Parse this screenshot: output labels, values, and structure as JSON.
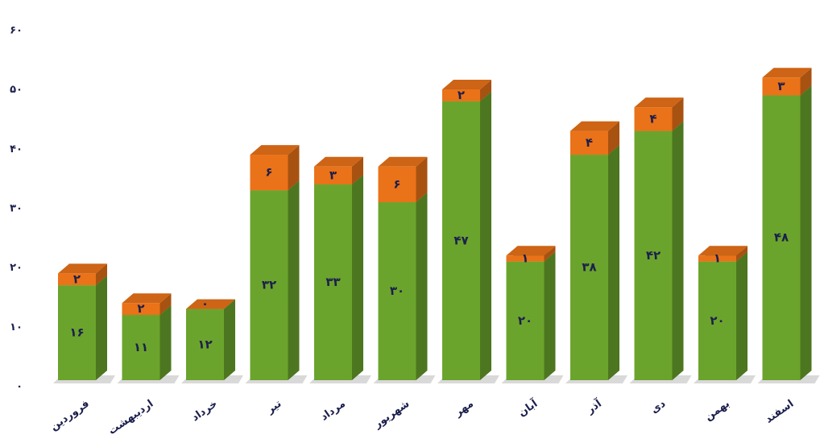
{
  "chart_data": {
    "type": "bar",
    "categories": [
      "فروردین",
      "اردیبهشت",
      "خرداد",
      "تیر",
      "مرداد",
      "شهریور",
      "مهر",
      "آبان",
      "آذر",
      "دی",
      "بهمن",
      "اسفند"
    ],
    "series": [
      {
        "color": "#6ba42c",
        "values": [
          16,
          11,
          12,
          32,
          33,
          30,
          47,
          20,
          38,
          42,
          20,
          48
        ],
        "value_labels": [
          "۱۶",
          "۱۱",
          "۱۲",
          "۳۲",
          "۳۳",
          "۳۰",
          "۴۷",
          "۲۰",
          "۳۸",
          "۴۲",
          "۲۰",
          "۴۸"
        ]
      },
      {
        "color": "#ea7218",
        "values": [
          2,
          2,
          0,
          6,
          3,
          6,
          2,
          1,
          4,
          4,
          1,
          3
        ],
        "value_labels": [
          "۲",
          "۲",
          "۰",
          "۶",
          "۳",
          "۶",
          "۲",
          "۱",
          "۴",
          "۴",
          "۱",
          "۳"
        ]
      }
    ],
    "ylim": [
      0,
      60
    ],
    "yticks": [
      {
        "value": 0,
        "label": "۰"
      },
      {
        "value": 10,
        "label": "۱۰"
      },
      {
        "value": 20,
        "label": "۲۰"
      },
      {
        "value": 30,
        "label": "۳۰"
      },
      {
        "value": 40,
        "label": "۴۰"
      },
      {
        "value": 50,
        "label": "۵۰"
      },
      {
        "value": 60,
        "label": "۶۰"
      }
    ],
    "grid": false
  }
}
